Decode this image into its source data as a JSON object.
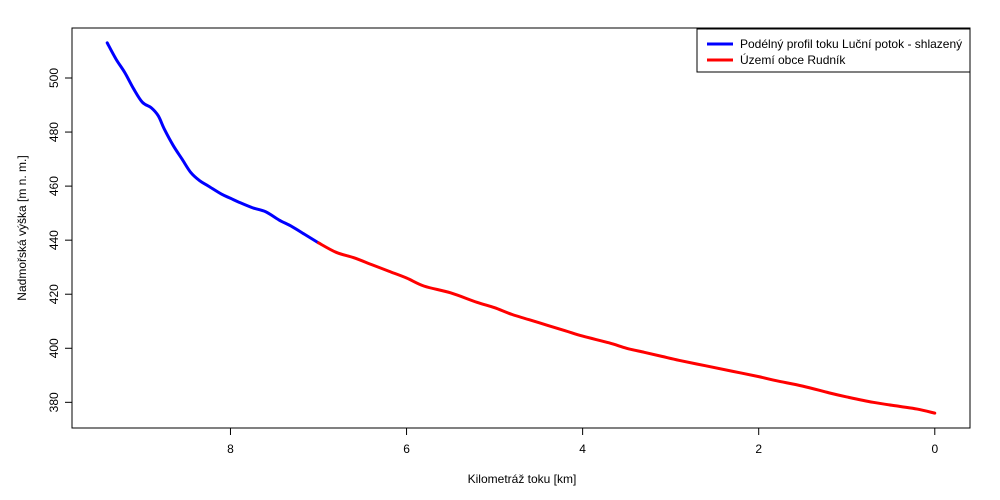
{
  "chart_data": {
    "type": "line",
    "xlabel": "Kilometráž toku [km]",
    "ylabel": "Nadmořská výška [m n. m.]",
    "xlim": [
      9.8,
      -0.4
    ],
    "ylim": [
      370.5,
      518.5
    ],
    "x_ticks": [
      8,
      6,
      4,
      2,
      0
    ],
    "y_ticks": [
      380,
      400,
      420,
      440,
      460,
      480,
      500
    ],
    "grid": false,
    "legend_position": "top-right",
    "series": [
      {
        "name": "Podélný profil toku Luční potok - shlazený",
        "color": "#0000ff",
        "x": [
          9.4,
          9.3,
          9.2,
          9.1,
          9.0,
          8.9,
          8.82,
          8.75,
          8.65,
          8.55,
          8.45,
          8.35,
          8.25,
          8.1,
          8.0,
          7.9,
          7.75,
          7.6,
          7.45,
          7.3,
          7.15,
          7.0
        ],
        "y": [
          513,
          507,
          502,
          496,
          491,
          489,
          486,
          481,
          475,
          470,
          465,
          462,
          460,
          457,
          455.5,
          454,
          452,
          450.5,
          447.5,
          445,
          442,
          439
        ]
      },
      {
        "name": "Území obce Rudník",
        "color": "#ff0000",
        "x": [
          7.0,
          6.8,
          6.6,
          6.4,
          6.2,
          6.0,
          5.8,
          5.5,
          5.2,
          5.0,
          4.8,
          4.5,
          4.2,
          4.0,
          3.7,
          3.5,
          3.3,
          3.1,
          2.9,
          2.6,
          2.3,
          2.0,
          1.8,
          1.5,
          1.2,
          1.0,
          0.7,
          0.4,
          0.2,
          0.0
        ],
        "y": [
          439,
          435.5,
          433.5,
          431,
          428.5,
          426,
          423,
          420.5,
          417,
          415,
          412.5,
          409.5,
          406.5,
          404.5,
          402,
          400,
          398.5,
          397,
          395.5,
          393.5,
          391.5,
          389.5,
          388,
          386,
          383.5,
          382,
          380,
          378.5,
          377.5,
          376
        ]
      }
    ]
  }
}
